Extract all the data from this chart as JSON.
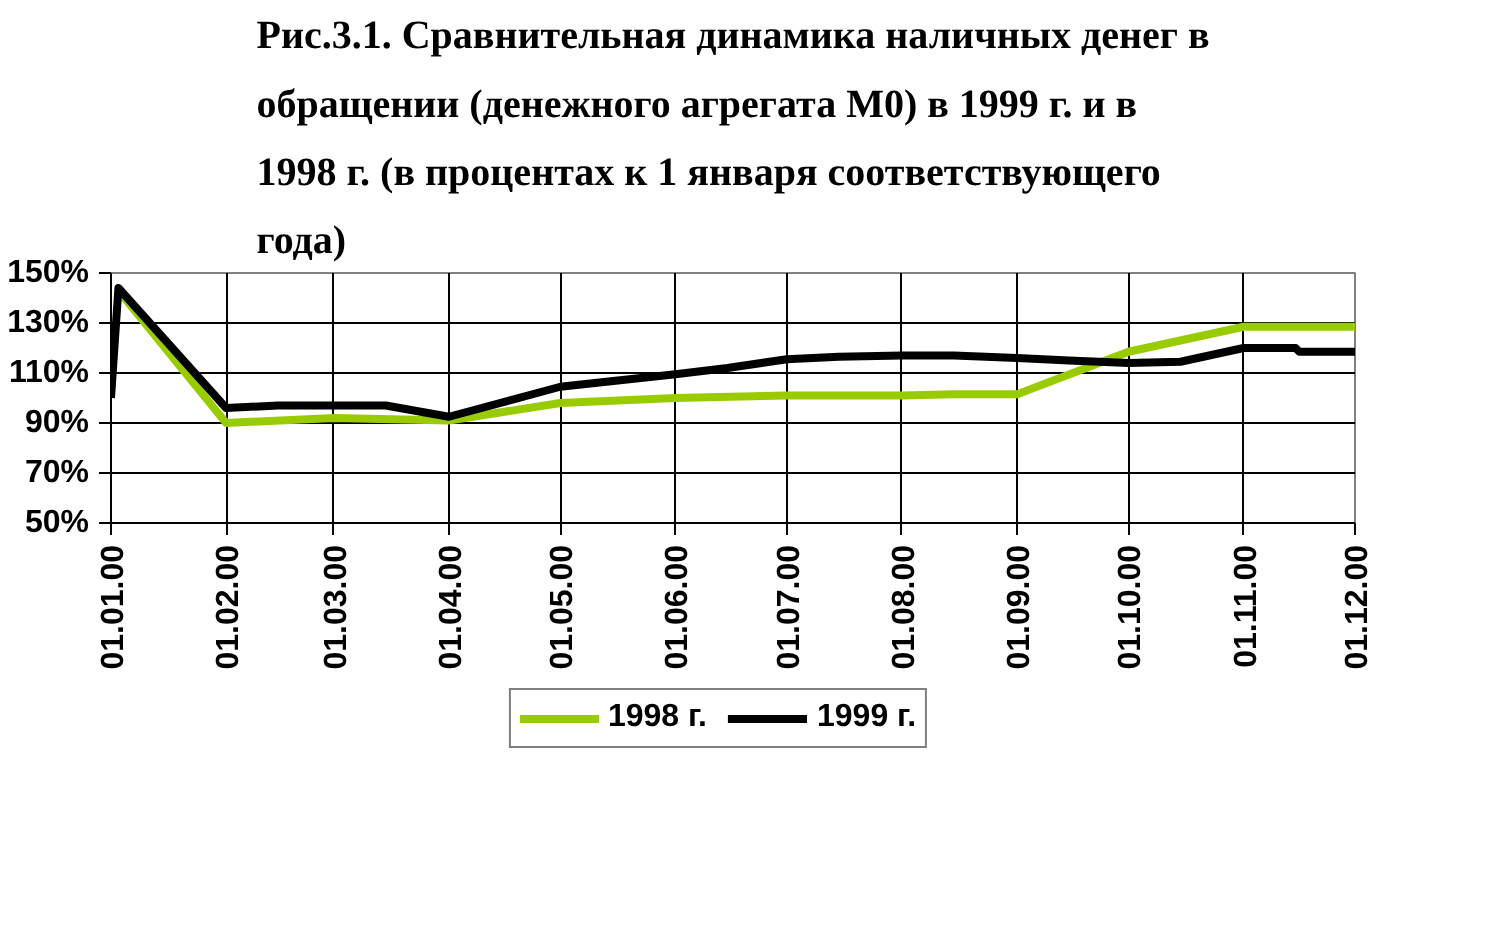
{
  "chart_data": {
    "type": "line",
    "title": "Рис.3.1. Сравнительная динамика наличных денег в обращении (денежного агрегата М0) в 1999 г. и в 1998 г. (в процентах к 1 января соответствующего года)",
    "xlim": [
      "2000-01-01",
      "2000-12-01"
    ],
    "xticks": [
      {
        "value": "2000-01-01",
        "label": "01.01.00"
      },
      {
        "value": "2000-02-01",
        "label": "01.02.00"
      },
      {
        "value": "2000-03-01",
        "label": "01.03.00"
      },
      {
        "value": "2000-04-01",
        "label": "01.04.00"
      },
      {
        "value": "2000-05-01",
        "label": "01.05.00"
      },
      {
        "value": "2000-06-01",
        "label": "01.06.00"
      },
      {
        "value": "2000-07-01",
        "label": "01.07.00"
      },
      {
        "value": "2000-08-01",
        "label": "01.08.00"
      },
      {
        "value": "2000-09-01",
        "label": "01.09.00"
      },
      {
        "value": "2000-10-01",
        "label": "01.10.00"
      },
      {
        "value": "2000-11-01",
        "label": "01.11.00"
      },
      {
        "value": "2000-12-01",
        "label": "01.12.00"
      }
    ],
    "ylim": [
      50,
      150
    ],
    "yticks": [
      {
        "value": 50,
        "label": "50%"
      },
      {
        "value": 70,
        "label": "70%"
      },
      {
        "value": 90,
        "label": "90%"
      },
      {
        "value": 110,
        "label": "110%"
      },
      {
        "value": 130,
        "label": "130%"
      },
      {
        "value": 150,
        "label": "150%"
      }
    ],
    "series": [
      {
        "name": "1998 г.",
        "color": "#99cc00",
        "x": [
          "2000-01-03",
          "2000-02-01",
          "2000-03-01",
          "2000-04-01",
          "2000-05-01",
          "2000-06-01",
          "2000-07-01",
          "2000-08-01",
          "2000-08-15",
          "2000-09-01",
          "2000-10-01",
          "2000-11-01",
          "2000-12-01"
        ],
        "values": [
          143,
          90,
          92,
          91,
          98,
          100,
          101,
          101,
          101.5,
          101.5,
          118.5,
          128.5,
          128.5
        ]
      },
      {
        "name": "1999 г.",
        "color": "#000000",
        "x": [
          "2000-01-01",
          "2000-01-03",
          "2000-02-01",
          "2000-02-15",
          "2000-03-01",
          "2000-03-15",
          "2000-04-01",
          "2000-05-01",
          "2000-06-01",
          "2000-06-15",
          "2000-07-01",
          "2000-07-15",
          "2000-08-01",
          "2000-08-15",
          "2000-09-01",
          "2000-09-15",
          "2000-10-01",
          "2000-10-15",
          "2000-11-01",
          "2000-11-15",
          "2000-11-16",
          "2000-12-01"
        ],
        "values": [
          100,
          144,
          96,
          97,
          97,
          97,
          92.5,
          104.5,
          109.5,
          112,
          115.5,
          116.5,
          117,
          117,
          116,
          115,
          114,
          114.5,
          120,
          120,
          118.5,
          118.5
        ]
      }
    ],
    "grid": true,
    "legend": "bottom",
    "marker": "none",
    "line_style": "solid"
  }
}
